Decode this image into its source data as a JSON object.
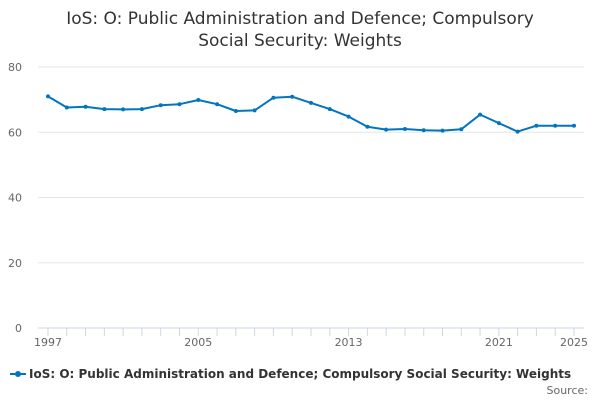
{
  "chart_data": {
    "type": "line",
    "title_lines": [
      "IoS: O: Public Administration and Defence; Compulsory",
      "Social Security: Weights"
    ],
    "xlabel": "",
    "ylabel": "",
    "ylim": [
      0,
      80
    ],
    "y_ticks": [
      0,
      20,
      40,
      60,
      80
    ],
    "y_tick_labels": [
      "0",
      "20",
      "40",
      "60",
      "80"
    ],
    "xlim": [
      1997,
      2025
    ],
    "x_ticks": [
      1997,
      2005,
      2013,
      2021,
      2025
    ],
    "x_tick_labels": [
      "1997",
      "2005",
      "2013",
      "2021",
      "2025"
    ],
    "grid": true,
    "legend_position": "bottom-left",
    "colors": {
      "series": "#0076bd",
      "grid": "#e6e6e6",
      "axis": "#ccd6eb",
      "text": "#333333",
      "tick_text": "#666666"
    },
    "series": [
      {
        "name": "IoS: O: Public Administration and Defence; Compulsory Social Security: Weights",
        "x": [
          1997,
          1998,
          1999,
          2000,
          2001,
          2002,
          2003,
          2004,
          2005,
          2006,
          2007,
          2008,
          2009,
          2010,
          2011,
          2012,
          2013,
          2014,
          2015,
          2016,
          2017,
          2018,
          2019,
          2020,
          2021,
          2022,
          2023,
          2024,
          2025
        ],
        "values": [
          71,
          67.6,
          67.8,
          67.1,
          67,
          67.1,
          68.3,
          68.6,
          69.9,
          68.6,
          66.5,
          66.7,
          70.6,
          70.9,
          69,
          67.1,
          64.8,
          61.7,
          60.8,
          61,
          60.6,
          60.5,
          60.9,
          65.4,
          62.8,
          60.2,
          62,
          62,
          62
        ]
      }
    ],
    "credits": "Source:"
  }
}
